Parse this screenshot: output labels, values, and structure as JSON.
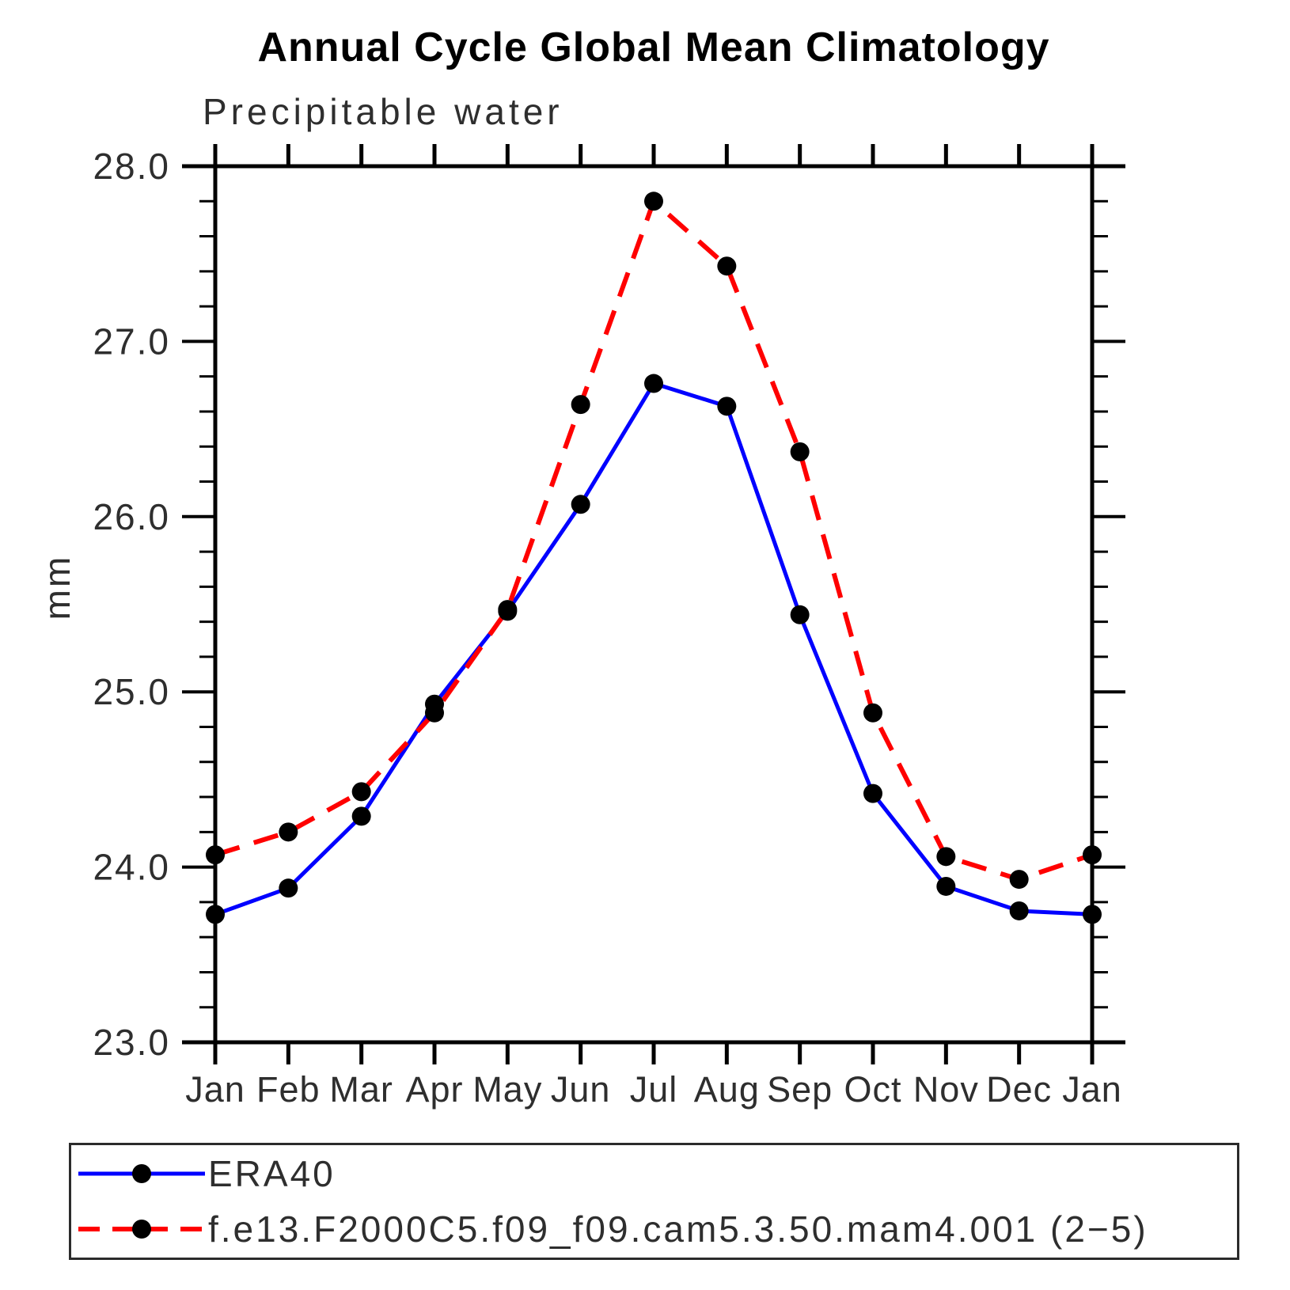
{
  "title": "Annual Cycle Global Mean Climatology",
  "subtitle": "Precipitable water",
  "y_axis_title": "mm",
  "colors": {
    "era40_line": "#0000ff",
    "model_line": "#ff0000",
    "marker": "#000000",
    "axis": "#000000",
    "text": "#2e2e2e"
  },
  "chart_data": {
    "type": "line",
    "title": "Annual Cycle Global Mean Climatology",
    "subtitle": "Precipitable water",
    "ylabel": "mm",
    "xlabel": "",
    "x_categories": [
      "Jan",
      "Feb",
      "Mar",
      "Apr",
      "May",
      "Jun",
      "Jul",
      "Aug",
      "Sep",
      "Oct",
      "Nov",
      "Dec",
      "Jan"
    ],
    "ylim": [
      23.0,
      28.0
    ],
    "ytick_major_values": [
      28.0,
      27.0,
      26.0,
      25.0,
      24.0,
      23.0
    ],
    "ytick_major_labels": [
      "28.0",
      "27.0",
      "26.0",
      "25.0",
      "24.0",
      "23.0"
    ],
    "ytick_minor_step": 0.2,
    "grid": "off",
    "legend_position": "bottom",
    "marker_color": "#000000",
    "series": [
      {
        "name": "ERA40",
        "color": "#0000ff",
        "style": "solid",
        "values": [
          23.73,
          23.88,
          24.29,
          24.93,
          25.46,
          26.07,
          26.76,
          26.63,
          25.44,
          24.42,
          23.89,
          23.75,
          23.73
        ]
      },
      {
        "name": "f.e13.F2000C5.f09_f09.cam5.3.50.mam4.001 (2−5)",
        "color": "#ff0000",
        "style": "dashed",
        "values": [
          24.07,
          24.2,
          24.43,
          24.88,
          25.47,
          26.64,
          27.8,
          27.43,
          26.37,
          24.88,
          24.06,
          23.93,
          24.07
        ]
      }
    ]
  }
}
